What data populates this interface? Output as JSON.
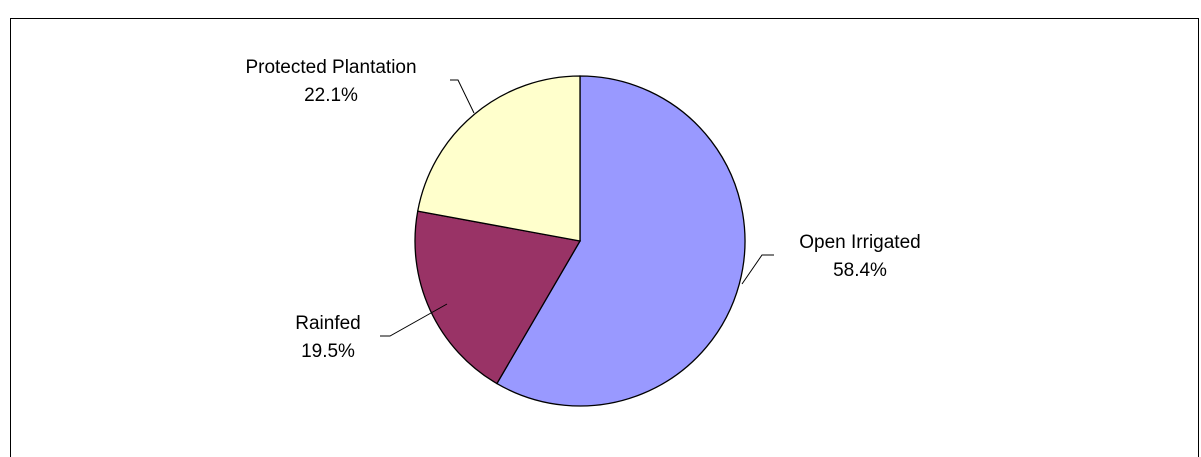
{
  "chart_data": {
    "type": "pie",
    "title": "",
    "slices": [
      {
        "label": "Open Irrigated",
        "value": 58.4,
        "value_label": "58.4%",
        "color": "#9999ff"
      },
      {
        "label": "Rainfed",
        "value": 19.5,
        "value_label": "19.5%",
        "color": "#993366"
      },
      {
        "label": "Protected Plantation",
        "value": 22.1,
        "value_label": "22.1%",
        "color": "#ffffcc"
      }
    ],
    "start_angle_deg": 0,
    "direction": "clockwise",
    "legend": "none"
  }
}
